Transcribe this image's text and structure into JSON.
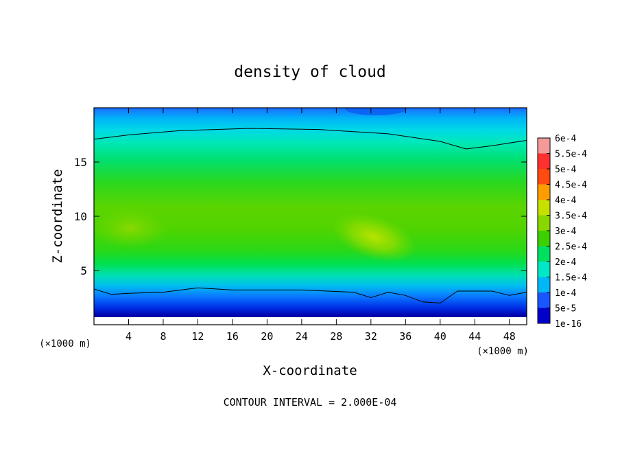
{
  "chart_data": {
    "type": "heatmap",
    "title": "density of cloud",
    "xlabel": "X-coordinate",
    "ylabel": "Z-coordinate",
    "x_unit_label": "(×1000 m)",
    "y_unit_label": "(×1000 m)",
    "footer": "CONTOUR INTERVAL = 2.000E-04",
    "xlim": [
      0,
      50
    ],
    "ylim": [
      0,
      20
    ],
    "x_ticks": [
      4,
      8,
      12,
      16,
      20,
      24,
      28,
      32,
      36,
      40,
      44,
      48
    ],
    "y_ticks": [
      5,
      10,
      15
    ],
    "colorbar": {
      "labels": [
        "6e-4",
        "5.5e-4",
        "5e-4",
        "4.5e-4",
        "4e-4",
        "3.5e-4",
        "3e-4",
        "2.5e-4",
        "2e-4",
        "1.5e-4",
        "1e-4",
        "5e-5",
        "1e-16"
      ],
      "values": [
        0.0006,
        0.00055,
        0.0005,
        0.00045,
        0.0004,
        0.00035,
        0.0003,
        0.00025,
        0.0002,
        0.00015,
        0.0001,
        5e-05,
        1e-16
      ],
      "colors": [
        "#f59a9a",
        "#ff3030",
        "#ff4a10",
        "#ff9c00",
        "#c8e000",
        "#88d800",
        "#3cd000",
        "#00e060",
        "#00e8c8",
        "#00b8f8",
        "#1a56ff",
        "#0000c8",
        "#6a00b0"
      ]
    },
    "contour_lines": [
      {
        "level": 0.0002,
        "points": [
          [
            0,
            17.1
          ],
          [
            4,
            17.5
          ],
          [
            10,
            17.9
          ],
          [
            18,
            18.1
          ],
          [
            26,
            18.0
          ],
          [
            34,
            17.6
          ],
          [
            40,
            16.9
          ],
          [
            43,
            16.2
          ],
          [
            46,
            16.5
          ],
          [
            50,
            17.0
          ]
        ]
      },
      {
        "level": 0.0002,
        "points": [
          [
            0,
            3.3
          ],
          [
            2,
            2.8
          ],
          [
            4,
            2.9
          ],
          [
            8,
            3.0
          ],
          [
            12,
            3.4
          ],
          [
            16,
            3.2
          ],
          [
            24,
            3.2
          ],
          [
            30,
            3.0
          ],
          [
            32,
            2.5
          ],
          [
            34,
            3.0
          ],
          [
            36,
            2.7
          ],
          [
            38,
            2.1
          ],
          [
            40,
            2.0
          ],
          [
            42,
            3.1
          ],
          [
            46,
            3.1
          ],
          [
            48,
            2.7
          ],
          [
            50,
            3.0
          ]
        ]
      }
    ]
  }
}
